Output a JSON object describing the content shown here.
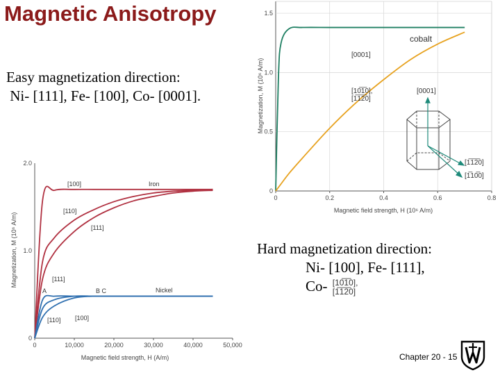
{
  "slide": {
    "title": "Magnetic Anisotropy",
    "easy_line1": "Easy magnetization direction:",
    "easy_line2": " Ni- [111], Fe- [100], Co- [0001].",
    "hard_line1": "Hard magnetization direction:",
    "hard_line2": "Ni- [100], Fe- [111],",
    "hard_line3": "Co-",
    "hard_co_dir1": "[10̅1̅0],",
    "hard_co_dir2": "[1̅1̅2̅0]",
    "footer": "Chapter 20 - 15"
  },
  "chart_data": [
    {
      "type": "line",
      "title": "iron / Nickel",
      "xlabel": "Magnetic field strength, H (A/m)",
      "ylabel": "Magnetization, M (10⁶ A/m)",
      "xlim": [
        0,
        50000
      ],
      "ylim": [
        0,
        2.0
      ],
      "xticks": [
        "0",
        "10,000",
        "20,000",
        "30,000",
        "40,000",
        "50,000"
      ],
      "yticks": [
        "0",
        "1.0",
        "2.0"
      ],
      "x": [
        0,
        2000,
        5000,
        10000,
        15000,
        20000,
        25000,
        30000,
        35000,
        40000,
        45000
      ],
      "labels": {
        "iron": "Iron",
        "nickel": "Nickel",
        "A": "A",
        "BC": "B C",
        "fe100": "[100]",
        "fe110": "[110]",
        "fe111": "[111]",
        "ni111": "[111]",
        "ni110": "[110]",
        "ni100": "[100]"
      },
      "series": [
        {
          "name": "Fe [100]",
          "color": "#B03040",
          "values": [
            0,
            1.58,
            1.69,
            1.7,
            1.7,
            1.7,
            1.7,
            1.7,
            1.7,
            1.7,
            1.7
          ]
        },
        {
          "name": "Fe [110]",
          "color": "#B03040",
          "values": [
            0,
            0.88,
            1.15,
            1.35,
            1.47,
            1.56,
            1.62,
            1.66,
            1.68,
            1.69,
            1.7
          ]
        },
        {
          "name": "Fe [111]",
          "color": "#B03040",
          "values": [
            0,
            0.68,
            0.98,
            1.22,
            1.38,
            1.49,
            1.57,
            1.62,
            1.66,
            1.68,
            1.69
          ]
        },
        {
          "name": "Ni [111]",
          "color": "#3070B0",
          "values": [
            0,
            0.44,
            0.48,
            0.48,
            0.48,
            0.48,
            0.48,
            0.48,
            0.48,
            0.48,
            0.48
          ]
        },
        {
          "name": "Ni [110]",
          "color": "#3070B0",
          "values": [
            0,
            0.34,
            0.44,
            0.48,
            0.48,
            0.48,
            0.48,
            0.48,
            0.48,
            0.48,
            0.48
          ]
        },
        {
          "name": "Ni [100]",
          "color": "#3070B0",
          "values": [
            0,
            0.24,
            0.37,
            0.46,
            0.48,
            0.48,
            0.48,
            0.48,
            0.48,
            0.48,
            0.48
          ]
        }
      ]
    },
    {
      "type": "line",
      "title": "cobalt",
      "xlabel": "Magnetic field strength, H (10⁶ A/m)",
      "ylabel": "Magnetization, M (10⁶ A/m)",
      "xlim": [
        0,
        0.8
      ],
      "ylim": [
        0,
        1.6
      ],
      "xticks": [
        "0",
        "0.2",
        "0.4",
        "0.6",
        "0.8"
      ],
      "yticks": [
        "0",
        "0.5",
        "1.0",
        "1.5"
      ],
      "x": [
        0,
        0.01,
        0.02,
        0.05,
        0.1,
        0.2,
        0.3,
        0.4,
        0.5,
        0.6,
        0.7
      ],
      "labels": {
        "c0001": "[0001]",
        "c1010": "[10̅1̅0],",
        "c1120": "[1̅1̅2̅0]",
        "hex0001": "[0001]",
        "hex1120": "[1̅1̅2̅0]",
        "hex1010": "[1̅10̅0]"
      },
      "series": [
        {
          "name": "[0001]",
          "color": "#1E7F62",
          "values": [
            0,
            0.95,
            1.25,
            1.37,
            1.38,
            1.38,
            1.38,
            1.38,
            1.38,
            1.38,
            1.38
          ]
        },
        {
          "name": "[10̅1̅0], [1̅1̅2̅0]",
          "color": "#E7A21F",
          "values": [
            0,
            0.03,
            0.06,
            0.15,
            0.28,
            0.53,
            0.75,
            0.94,
            1.11,
            1.24,
            1.34
          ]
        }
      ]
    }
  ]
}
